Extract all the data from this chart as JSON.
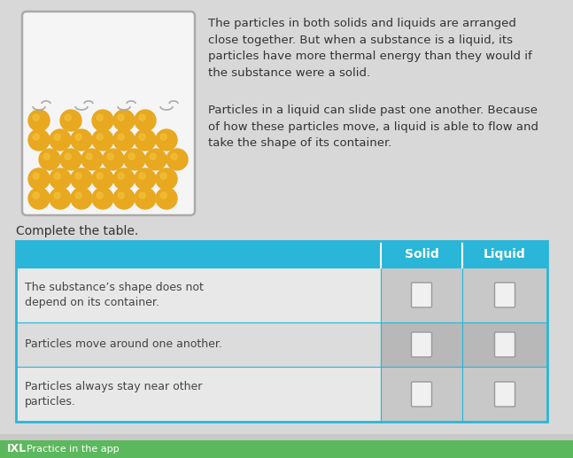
{
  "background_color": "#c8c8c8",
  "page_bg": "#e8e8e8",
  "text_paragraph1": "The particles in both solids and liquids are arranged\nclose together. But when a substance is a liquid, its\nparticles have more thermal energy than they would if\nthe substance were a solid.",
  "text_paragraph2": "Particles in a liquid can slide past one another. Because\nof how these particles move, a liquid is able to flow and\ntake the shape of its container.",
  "complete_table_text": "Complete the table.",
  "table_header_color": "#29b6d8",
  "table_header_text_color": "#ffffff",
  "table_row_bg_light": "#dcdcdc",
  "table_row_bg_lighter": "#e8e8e8",
  "table_border_color": "#29b6d8",
  "table_col_headers": [
    "Solid",
    "Liquid"
  ],
  "table_rows": [
    "The substance’s shape does not\ndepend on its container.",
    "Particles move around one another.",
    "Particles always stay near other\nparticles."
  ],
  "checkbox_color": "#f0f0f0",
  "checkbox_border": "#999999",
  "container_facecolor": "#f5f5f5",
  "container_border": "#aaaaaa",
  "particle_color": "#e8a820",
  "particle_highlight": "#f5c840",
  "motion_line_color": "#aaaaaa",
  "bottom_bar_color": "#5cb85c",
  "ixl_text": "IXL   Practice in the app",
  "font_size_body": 9.5,
  "font_size_table": 9,
  "font_size_header": 10,
  "font_size_complete": 10,
  "font_size_ixl": 8
}
